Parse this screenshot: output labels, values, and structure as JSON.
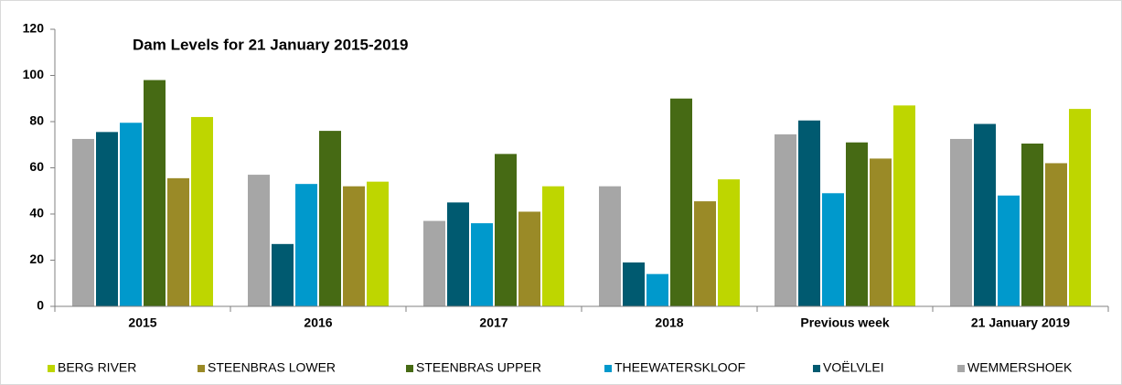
{
  "chart_data": {
    "type": "bar",
    "title": "Dam Levels for 21 January 2015-2019",
    "categories": [
      "2015",
      "2016",
      "2017",
      "2018",
      "Previous week",
      "21 January 2019"
    ],
    "series": [
      {
        "name": "WEMMERSHOEK",
        "color": "#a6a6a6",
        "values": [
          72.5,
          57,
          37,
          52,
          74.5,
          72.5
        ]
      },
      {
        "name": "VOËLVLEI",
        "color": "#005a70",
        "values": [
          75.5,
          27,
          45,
          19,
          80.5,
          79
        ]
      },
      {
        "name": "THEEWATERSKLOOF",
        "color": "#0099cc",
        "values": [
          79.5,
          53,
          36,
          14,
          49,
          48
        ]
      },
      {
        "name": "STEENBRAS UPPER",
        "color": "#466a14",
        "values": [
          98,
          76,
          66,
          90,
          71,
          70.5
        ]
      },
      {
        "name": "STEENBRAS LOWER",
        "color": "#9a8a27",
        "values": [
          55.5,
          52,
          41,
          45.5,
          64,
          62
        ]
      },
      {
        "name": "BERG RIVER",
        "color": "#bed600",
        "values": [
          82,
          54,
          52,
          55,
          87,
          85.5
        ]
      }
    ],
    "ylim": [
      0,
      120
    ],
    "yticks": [
      0,
      20,
      40,
      60,
      80,
      100,
      120
    ],
    "grid": false
  }
}
